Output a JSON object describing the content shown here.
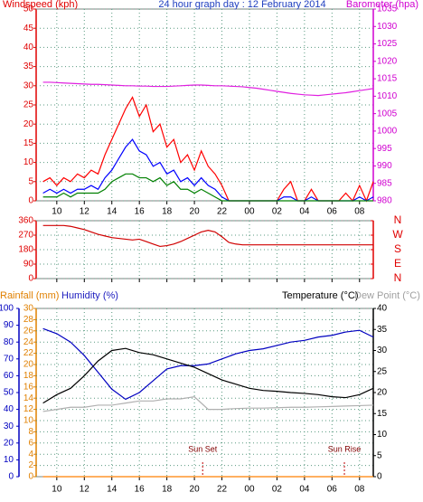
{
  "chart_data": [
    {
      "type": "line",
      "header": [
        {
          "text": "Windspeed (kph)",
          "color": "#e00000"
        },
        {
          "text": "24 hour graph day : 12 February 2014",
          "color": "#2040c0"
        },
        {
          "text": "Barometer (hpa)",
          "color": "#d000d0"
        }
      ],
      "xlim": [
        8.5,
        33
      ],
      "xticks": [
        10,
        12,
        14,
        16,
        18,
        20,
        22,
        {
          "value": 24,
          "label": "00"
        },
        {
          "value": 26,
          "label": "02"
        },
        {
          "value": 28,
          "label": "04"
        },
        {
          "value": 30,
          "label": "06"
        },
        {
          "value": 32,
          "label": "08"
        }
      ],
      "ylim": [
        0,
        50
      ],
      "yticks": [
        0,
        5,
        10,
        15,
        20,
        25,
        30,
        35,
        40,
        45,
        50
      ],
      "ycolor": "#e00000",
      "y2lim": [
        980,
        1035
      ],
      "y2ticks": [
        980,
        985,
        990,
        995,
        1000,
        1005,
        1010,
        1015,
        1020,
        1025,
        1030,
        1035
      ],
      "y2color": "#d000d0",
      "grid": true,
      "x": [
        9,
        9.5,
        10,
        10.5,
        11,
        11.5,
        12,
        12.5,
        13,
        13.5,
        14,
        14.5,
        15,
        15.5,
        16,
        16.5,
        17,
        17.5,
        18,
        18.5,
        19,
        19.5,
        20,
        20.5,
        21,
        21.5,
        22,
        22.5,
        23,
        23.5,
        24,
        24.5,
        25,
        25.5,
        26,
        26.5,
        27,
        27.5,
        28,
        28.5,
        29,
        29.5,
        30,
        30.5,
        31,
        31.5,
        32,
        32.5,
        33
      ],
      "series": [
        {
          "color": "#ff0000",
          "axis": "y",
          "values": [
            5,
            6,
            4,
            6,
            5,
            7,
            6,
            8,
            7,
            12,
            16,
            20,
            24,
            27,
            22,
            25,
            18,
            20,
            14,
            16,
            10,
            12,
            8,
            13,
            9,
            7,
            4,
            0,
            0,
            0,
            0,
            0,
            0,
            0,
            0,
            3,
            5,
            0,
            0,
            3,
            0,
            0,
            0,
            0,
            2,
            0,
            4,
            0,
            5
          ]
        },
        {
          "color": "#0000ff",
          "axis": "y",
          "values": [
            2,
            3,
            2,
            3,
            2,
            3,
            3,
            4,
            3,
            6,
            8,
            11,
            14,
            16,
            13,
            12,
            9,
            10,
            7,
            8,
            5,
            6,
            4,
            6,
            4,
            3,
            1,
            0,
            0,
            0,
            0,
            0,
            0,
            0,
            0,
            1,
            1,
            0,
            0,
            1,
            0,
            0,
            0,
            0,
            0,
            0,
            1,
            0,
            1
          ]
        },
        {
          "color": "#008000",
          "axis": "y",
          "values": [
            1,
            1,
            1,
            2,
            1,
            2,
            2,
            2,
            2,
            3,
            5,
            6,
            7,
            7,
            6,
            6,
            5,
            6,
            4,
            5,
            3,
            3,
            2,
            3,
            2,
            1,
            0,
            0,
            0,
            0,
            0,
            0,
            0,
            0,
            0,
            0,
            0,
            0,
            0,
            0,
            0,
            0,
            0,
            0,
            0,
            0,
            0,
            0,
            0
          ]
        },
        {
          "color": "#e020e0",
          "axis": "y2",
          "values": [
            1014.0,
            1014.0,
            1013.9,
            1013.8,
            1013.7,
            1013.6,
            1013.5,
            1013.4,
            1013.4,
            1013.3,
            1013.2,
            1013.1,
            1013.0,
            1013.0,
            1012.9,
            1012.9,
            1012.8,
            1012.8,
            1012.8,
            1012.9,
            1013.0,
            1013.1,
            1013.2,
            1013.2,
            1013.1,
            1013.0,
            1013.0,
            1012.9,
            1012.8,
            1012.7,
            1012.5,
            1012.3,
            1012.0,
            1011.7,
            1011.4,
            1011.1,
            1010.8,
            1010.6,
            1010.4,
            1010.3,
            1010.2,
            1010.4,
            1010.6,
            1010.8,
            1011.0,
            1011.3,
            1011.6,
            1011.9,
            1012.2
          ]
        }
      ]
    },
    {
      "type": "line",
      "xlim": [
        8.5,
        33
      ],
      "xticks": [
        10,
        12,
        14,
        16,
        18,
        20,
        22,
        24,
        26,
        28,
        30,
        32
      ],
      "ylim": [
        0,
        360
      ],
      "yticks": [
        0,
        90,
        180,
        270,
        360
      ],
      "ycolor": "#e00000",
      "y2lim": [
        0,
        360
      ],
      "y2ticks": [
        {
          "value": 360,
          "label": "N"
        },
        {
          "value": 270,
          "label": "W"
        },
        {
          "value": 180,
          "label": "S"
        },
        {
          "value": 90,
          "label": "E"
        },
        {
          "value": 0,
          "label": "N"
        }
      ],
      "y2color": "#e00000",
      "grid": true,
      "x": [
        9,
        9.5,
        10,
        10.5,
        11,
        11.5,
        12,
        12.5,
        13,
        13.5,
        14,
        14.5,
        15,
        15.5,
        16,
        16.5,
        17,
        17.5,
        18,
        18.5,
        19,
        19.5,
        20,
        20.5,
        21,
        21.5,
        22,
        22.5,
        23,
        23.5,
        24,
        24.5,
        25,
        25.5,
        26,
        26.5,
        27,
        27.5,
        28,
        28.5,
        29,
        29.5,
        30,
        30.5,
        31,
        31.5,
        32,
        32.5,
        33
      ],
      "series": [
        {
          "color": "#d00000",
          "axis": "y",
          "values": [
            330,
            330,
            330,
            330,
            325,
            315,
            305,
            290,
            275,
            265,
            255,
            250,
            245,
            240,
            245,
            230,
            215,
            200,
            205,
            215,
            230,
            250,
            270,
            290,
            300,
            290,
            260,
            225,
            215,
            210,
            210,
            210,
            210,
            210,
            210,
            210,
            210,
            210,
            210,
            210,
            210,
            210,
            210,
            210,
            210,
            210,
            210,
            210,
            210
          ]
        }
      ]
    },
    {
      "type": "line",
      "header": [
        {
          "text": "Rainfall (mm)",
          "color": "#e08000"
        },
        {
          "text": "Humidity (%)",
          "color": "#2020c0"
        },
        {
          "text": "Temperature (°C)",
          "color": "#000000"
        },
        {
          "text": "Dew Point (°C)",
          "color": "#a0a0a0"
        }
      ],
      "xlim": [
        8.5,
        33
      ],
      "xticks": [
        10,
        12,
        14,
        16,
        18,
        20,
        22,
        {
          "value": 24,
          "label": "00"
        },
        {
          "value": 26,
          "label": "02"
        },
        {
          "value": 28,
          "label": "04"
        },
        {
          "value": 30,
          "label": "06"
        },
        {
          "value": 32,
          "label": "08"
        }
      ],
      "ylim": [
        0,
        30
      ],
      "yticks": [
        0,
        2,
        4,
        6,
        8,
        10,
        12,
        14,
        16,
        18,
        20,
        22,
        24,
        26,
        28,
        30
      ],
      "ycolor": "#e08000",
      "y3lim": [
        0,
        100
      ],
      "y3ticks": [
        0,
        10,
        20,
        30,
        40,
        50,
        60,
        70,
        80,
        90,
        100
      ],
      "y3color": "#0000c0",
      "y2lim": [
        0,
        40
      ],
      "y2ticks": [
        0,
        5,
        10,
        15,
        20,
        25,
        30,
        35,
        40
      ],
      "y2color": "#000000",
      "grid": true,
      "x": [
        9,
        10,
        11,
        12,
        13,
        14,
        15,
        16,
        17,
        18,
        19,
        20,
        21,
        22,
        23,
        24,
        25,
        26,
        27,
        28,
        29,
        30,
        31,
        32,
        33
      ],
      "series": [
        {
          "color": "#ff8000",
          "axis": "y",
          "values": [
            0,
            0,
            0,
            0,
            0,
            0,
            0,
            0,
            0,
            0,
            0,
            0,
            0,
            0,
            0,
            0,
            0,
            0,
            0,
            0,
            0,
            0,
            0,
            0,
            0
          ]
        },
        {
          "color": "#0000c0",
          "axis": "y3",
          "values": [
            88,
            85,
            80,
            72,
            62,
            52,
            46,
            50,
            57,
            64,
            66,
            66,
            67,
            70,
            73,
            75,
            76,
            78,
            80,
            81,
            83,
            84,
            86,
            87,
            83
          ]
        },
        {
          "color": "#000000",
          "axis": "y2",
          "values": [
            17.5,
            19.5,
            21,
            24,
            27.5,
            30,
            30.5,
            29.5,
            29,
            28,
            27,
            26,
            24.5,
            23,
            22,
            21,
            20.5,
            20.3,
            20,
            19.8,
            19.5,
            19,
            18.8,
            19.5,
            21
          ]
        },
        {
          "color": "#b0b0b0",
          "axis": "y2",
          "values": [
            15.5,
            16,
            16.5,
            16.5,
            17,
            17,
            17.5,
            18,
            18,
            18.5,
            18.5,
            19,
            16,
            16,
            16.2,
            16.3,
            16.3,
            16.4,
            16.5,
            16.5,
            16.6,
            16.7,
            16.8,
            16.9,
            17
          ]
        }
      ],
      "annotations": [
        {
          "x": 20.6,
          "text": "Sun Set"
        },
        {
          "x": 30.9,
          "text": "Sun Rise"
        }
      ]
    }
  ]
}
